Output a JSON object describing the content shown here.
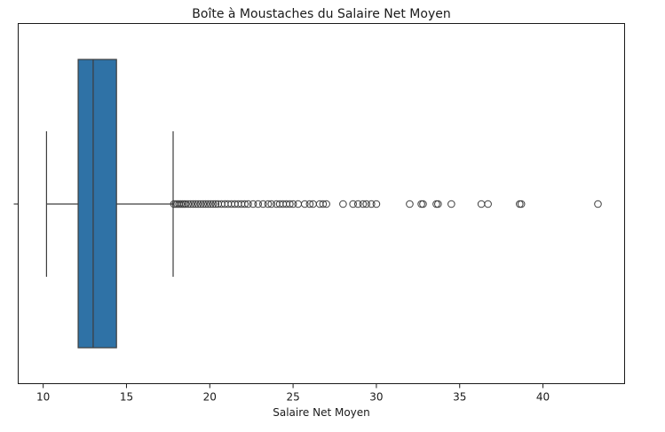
{
  "chart_data": {
    "type": "box",
    "orientation": "horizontal",
    "title": "Boîte à Moustaches du Salaire Net Moyen",
    "xlabel": "Salaire Net Moyen",
    "ylabel": "",
    "xlim": [
      8.5,
      44.9
    ],
    "xticks": [
      10,
      15,
      20,
      25,
      30,
      35,
      40
    ],
    "grid": false,
    "box_color": "#2f72a6",
    "line_color": "#3d3d3d",
    "box": {
      "whisker_low": 10.2,
      "q1": 12.1,
      "median": 13.0,
      "q3": 14.4,
      "whisker_high": 17.8
    },
    "outliers": [
      17.85,
      17.95,
      18.05,
      18.15,
      18.25,
      18.35,
      18.45,
      18.55,
      18.7,
      18.85,
      19.0,
      19.15,
      19.3,
      19.45,
      19.6,
      19.75,
      19.9,
      20.05,
      20.2,
      20.35,
      20.5,
      20.7,
      20.9,
      21.1,
      21.3,
      21.5,
      21.7,
      21.9,
      22.1,
      22.3,
      22.6,
      22.9,
      23.2,
      23.5,
      23.7,
      24.0,
      24.2,
      24.4,
      24.6,
      24.8,
      25.0,
      25.3,
      25.7,
      26.0,
      26.2,
      26.6,
      26.8,
      27.0,
      28.0,
      28.6,
      28.9,
      29.2,
      29.4,
      29.7,
      30.0,
      32.0,
      32.7,
      32.8,
      33.6,
      33.7,
      34.5,
      36.3,
      36.7,
      38.6,
      38.7,
      43.3
    ]
  }
}
